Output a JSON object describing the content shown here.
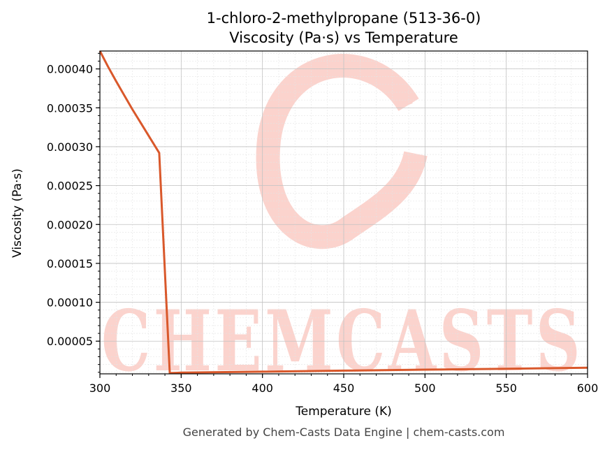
{
  "chart_data": {
    "type": "line",
    "title": "1-chloro-2-methylpropane (513-36-0)",
    "subtitle": "Viscosity (Pa·s) vs Temperature",
    "xlabel": "Temperature (K)",
    "ylabel": "Viscosity (Pa·s)",
    "xlim": [
      300,
      600
    ],
    "ylim": [
      8e-06,
      0.000423
    ],
    "xticks": [
      "300",
      "350",
      "400",
      "450",
      "500",
      "550",
      "600"
    ],
    "yticks": [
      "0.00005",
      "0.00010",
      "0.00015",
      "0.00020",
      "0.00025",
      "0.00030",
      "0.00035",
      "0.00040"
    ],
    "grid": true,
    "series": [
      {
        "x": [
          300,
          305,
          310,
          315,
          320,
          325,
          330,
          336.5,
          343,
          350,
          400,
          450,
          500,
          550,
          600
        ],
        "y": [
          0.000423,
          0.000403,
          0.000384,
          0.000366,
          0.000348,
          0.000331,
          0.000314,
          0.000292,
          9e-06,
          9.5e-06,
          1.08e-05,
          1.21e-05,
          1.34e-05,
          1.46e-05,
          1.58e-05
        ]
      }
    ],
    "line_color": "#d9582b"
  },
  "watermark": {
    "text": "CHEMCASTS",
    "color": "#fbd3cd"
  },
  "footer": "Generated by Chem-Casts Data Engine | chem-casts.com"
}
